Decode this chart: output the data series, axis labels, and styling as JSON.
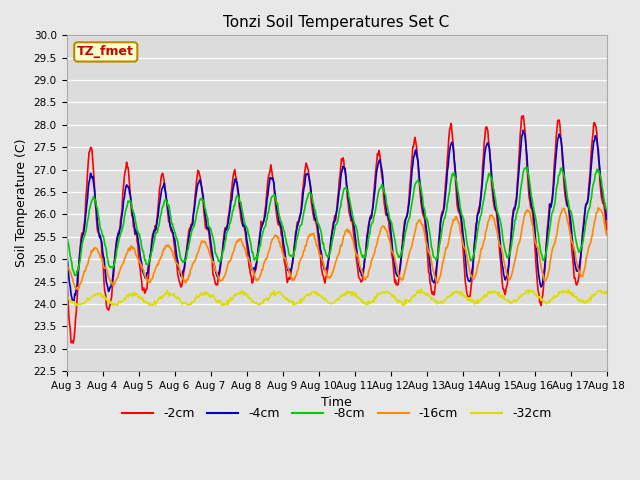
{
  "title": "Tonzi Soil Temperatures Set C",
  "xlabel": "Time",
  "ylabel": "Soil Temperature (C)",
  "ylim": [
    22.5,
    30.0
  ],
  "annotation": "TZ_fmet",
  "annotation_color": "#cc0000",
  "annotation_bg": "#ffffcc",
  "annotation_border": "#bb8800",
  "series_colors": [
    "#ff0000",
    "#0000cc",
    "#00cc00",
    "#ff8800",
    "#dddd00"
  ],
  "series_labels": [
    "-2cm",
    "-4cm",
    "-8cm",
    "-16cm",
    "-32cm"
  ],
  "xtick_labels": [
    "Aug 3",
    "Aug 4",
    "Aug 5",
    "Aug 6",
    "Aug 7",
    "Aug 8",
    "Aug 9",
    "Aug 10",
    "Aug 11",
    "Aug 12",
    "Aug 13",
    "Aug 14",
    "Aug 15",
    "Aug 16",
    "Aug 17",
    "Aug 18"
  ],
  "fig_bg": "#e8e8e8",
  "plot_bg": "#dcdcdc",
  "figsize": [
    6.4,
    4.8
  ],
  "dpi": 100
}
